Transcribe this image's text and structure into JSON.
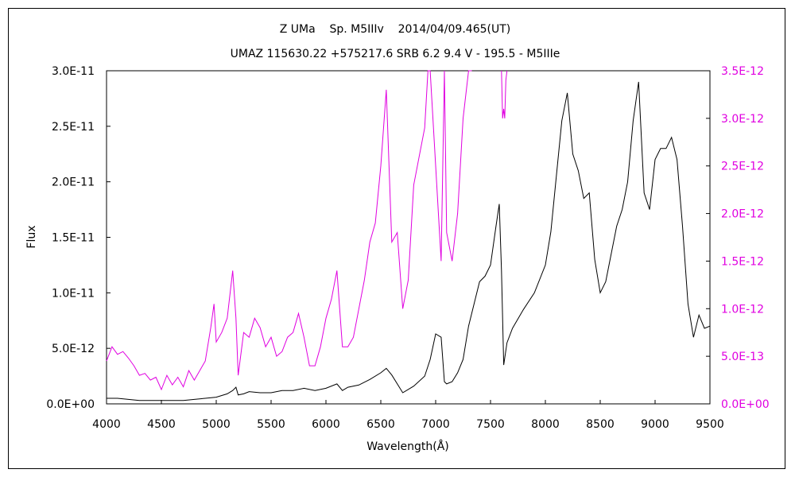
{
  "chart_data": {
    "type": "line",
    "title": "Z UMa    Sp. M5IIIv    2014/04/09.465(UT)",
    "subtitle": "UMAZ 115630.22 +575217.6 SRB 6.2 9.4 V - 195.5 - M5IIIe",
    "xlabel": "Wavelength(Å)",
    "ylabel": "Flux",
    "xlim": [
      4000,
      9500
    ],
    "ylim": [
      0,
      3e-11
    ],
    "y2lim": [
      0,
      3.5e-12
    ],
    "x_ticks": [
      4000,
      4500,
      5000,
      5500,
      6000,
      6500,
      7000,
      7500,
      8000,
      8500,
      9000,
      9500
    ],
    "x_tick_labels": [
      "4000",
      "4500",
      "5000",
      "5500",
      "6000",
      "6500",
      "7000",
      "7500",
      "8000",
      "8500",
      "9000",
      "9500"
    ],
    "y_ticks": [
      0,
      5e-12,
      1e-11,
      1.5e-11,
      2e-11,
      2.5e-11,
      3e-11
    ],
    "y_tick_labels": [
      "0.0E+00",
      "5.0E-12",
      "1.0E-11",
      "1.5E-11",
      "2.0E-11",
      "2.5E-11",
      "3.0E-11"
    ],
    "y2_ticks": [
      0,
      5e-13,
      1e-12,
      1.5e-12,
      2e-12,
      2.5e-12,
      3e-12,
      3.5e-12
    ],
    "y2_tick_labels": [
      "0.0E+00",
      "5.0E-13",
      "1.0E-12",
      "1.5E-12",
      "2.0E-12",
      "2.5E-12",
      "3.0E-12",
      "3.5E-12"
    ],
    "grid": false,
    "colors": {
      "primary": "#000000",
      "secondary": "#e000e0"
    },
    "series": [
      {
        "axis": "left",
        "color": "#000000",
        "x": [
          4000,
          4100,
          4200,
          4300,
          4400,
          4500,
          4600,
          4700,
          4800,
          4900,
          5000,
          5100,
          5150,
          5180,
          5200,
          5250,
          5300,
          5400,
          5500,
          5600,
          5700,
          5800,
          5900,
          6000,
          6100,
          6150,
          6200,
          6300,
          6400,
          6500,
          6550,
          6600,
          6700,
          6800,
          6900,
          6950,
          7000,
          7050,
          7080,
          7100,
          7150,
          7200,
          7250,
          7300,
          7400,
          7450,
          7500,
          7550,
          7580,
          7600,
          7620,
          7650,
          7700,
          7800,
          7900,
          8000,
          8050,
          8100,
          8150,
          8200,
          8250,
          8300,
          8350,
          8400,
          8450,
          8500,
          8550,
          8600,
          8650,
          8700,
          8750,
          8800,
          8850,
          8900,
          8950,
          9000,
          9050,
          9100,
          9150,
          9200,
          9250,
          9300,
          9350,
          9400,
          9450,
          9500
        ],
        "y": [
          5e-13,
          5e-13,
          4e-13,
          3e-13,
          3e-13,
          3e-13,
          3e-13,
          3e-13,
          4e-13,
          5e-13,
          6e-13,
          9e-13,
          1.2e-12,
          1.5e-12,
          8e-13,
          9e-13,
          1.1e-12,
          1e-12,
          1e-12,
          1.2e-12,
          1.2e-12,
          1.4e-12,
          1.2e-12,
          1.4e-12,
          1.8e-12,
          1.2e-12,
          1.5e-12,
          1.7e-12,
          2.2e-12,
          2.8e-12,
          3.2e-12,
          2.6e-12,
          1e-12,
          1.6e-12,
          2.5e-12,
          4e-12,
          6.3e-12,
          6e-12,
          2e-12,
          1.8e-12,
          2e-12,
          2.8e-12,
          4e-12,
          7e-12,
          1.1e-11,
          1.15e-11,
          1.25e-11,
          1.6e-11,
          1.8e-11,
          1.2e-11,
          3.5e-12,
          5.5e-12,
          6.8e-12,
          8.5e-12,
          1e-11,
          1.25e-11,
          1.55e-11,
          2.05e-11,
          2.55e-11,
          2.8e-11,
          2.25e-11,
          2.1e-11,
          1.85e-11,
          1.9e-11,
          1.3e-11,
          1e-11,
          1.1e-11,
          1.35e-11,
          1.6e-11,
          1.75e-11,
          2e-11,
          2.55e-11,
          2.9e-11,
          1.9e-11,
          1.75e-11,
          2.2e-11,
          2.3e-11,
          2.3e-11,
          2.4e-11,
          2.2e-11,
          1.6e-11,
          9e-12,
          6e-12,
          8e-12,
          6.8e-12,
          7e-12
        ]
      },
      {
        "axis": "right",
        "color": "#e000e0",
        "x": [
          4000,
          4050,
          4100,
          4150,
          4200,
          4250,
          4300,
          4350,
          4400,
          4450,
          4500,
          4550,
          4600,
          4650,
          4700,
          4750,
          4800,
          4850,
          4900,
          4950,
          4980,
          5000,
          5050,
          5100,
          5150,
          5180,
          5200,
          5250,
          5300,
          5350,
          5400,
          5450,
          5500,
          5550,
          5600,
          5650,
          5700,
          5750,
          5800,
          5850,
          5900,
          5950,
          6000,
          6050,
          6100,
          6150,
          6200,
          6250,
          6300,
          6350,
          6400,
          6450,
          6500,
          6550,
          6600,
          6650,
          6700,
          6750,
          6800,
          6850,
          6900,
          6930,
          6950,
          7000,
          7050,
          7080,
          7100,
          7150,
          7200,
          7250,
          7300,
          7330
        ],
        "y": [
          4.5e-13,
          6e-13,
          5.2e-13,
          5.5e-13,
          4.8e-13,
          4e-13,
          3e-13,
          3.2e-13,
          2.5e-13,
          2.8e-13,
          1.5e-13,
          3e-13,
          2e-13,
          2.8e-13,
          1.8e-13,
          3.5e-13,
          2.5e-13,
          3.5e-13,
          4.5e-13,
          8e-13,
          1.05e-12,
          6.5e-13,
          7.5e-13,
          9e-13,
          1.4e-12,
          9e-13,
          3e-13,
          7.5e-13,
          7e-13,
          9e-13,
          8e-13,
          6e-13,
          7e-13,
          5e-13,
          5.5e-13,
          7e-13,
          7.5e-13,
          9.5e-13,
          7e-13,
          4e-13,
          4e-13,
          6e-13,
          9e-13,
          1.1e-12,
          1.4e-12,
          6e-13,
          6e-13,
          7e-13,
          1e-12,
          1.3e-12,
          1.7e-12,
          1.9e-12,
          2.5e-12,
          3.3e-12,
          1.7e-12,
          1.8e-12,
          1e-12,
          1.3e-12,
          2.3e-12,
          2.6e-12,
          2.9e-12,
          3.5e-12,
          3.5e-12,
          2.5e-12,
          1.5e-12,
          3.5e-12,
          1.8e-12,
          1.5e-12,
          2e-12,
          3e-12,
          3.5e-12,
          3.5e-12
        ]
      },
      {
        "axis": "right",
        "color": "#e000e0",
        "x": [
          7600,
          7610,
          7620,
          7630,
          7640,
          7650
        ],
        "y": [
          3.5e-12,
          3e-12,
          3.1e-12,
          3e-12,
          3.4e-12,
          3.5e-12
        ]
      }
    ]
  }
}
